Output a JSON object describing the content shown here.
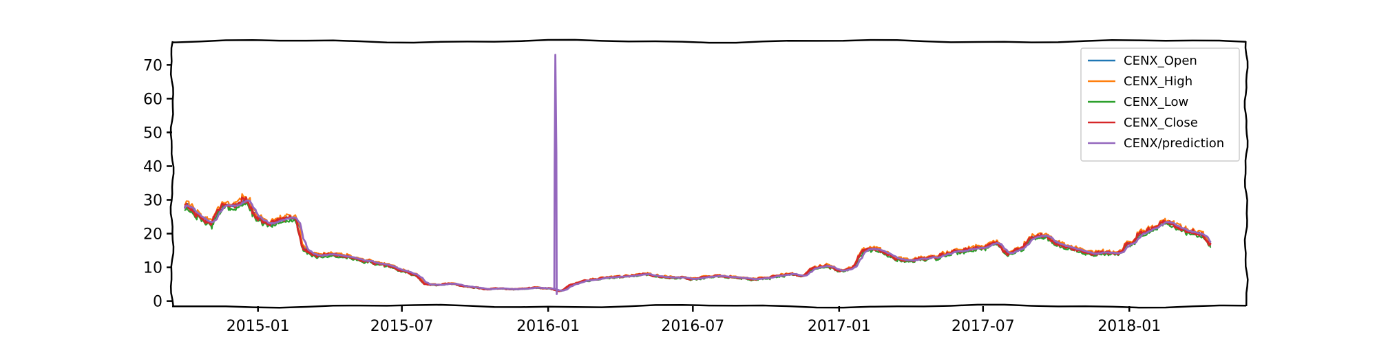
{
  "chart_data": {
    "type": "line",
    "title": "",
    "xlabel": "",
    "ylabel": "",
    "xlim": [
      "2014-09-15",
      "2018-05-28"
    ],
    "ylim": [
      -1.5,
      77
    ],
    "y_ticks": [
      0,
      10,
      20,
      30,
      40,
      50,
      60,
      70
    ],
    "y_tick_labels": [
      "0",
      "10",
      "20",
      "30",
      "40",
      "50",
      "60",
      "70"
    ],
    "x_ticks": [
      "2015-01-01",
      "2015-07-01",
      "2016-01-01",
      "2016-07-01",
      "2017-01-01",
      "2017-07-01",
      "2018-01-01"
    ],
    "x_tick_labels": [
      "2015-01",
      "2015-07",
      "2016-01",
      "2016-07",
      "2017-01",
      "2017-07",
      "2018-01"
    ],
    "grid": false,
    "legend_position": "top-right",
    "style": "xkcd",
    "colors": {
      "CENX_Open": "#1f77b4",
      "CENX_High": "#ff7f0e",
      "CENX_Low": "#2ca02c",
      "CENX_Close": "#d62728",
      "CENX/prediction": "#9467bd"
    },
    "series": [
      {
        "name": "CENX_Open"
      },
      {
        "name": "CENX_High"
      },
      {
        "name": "CENX_Low"
      },
      {
        "name": "CENX_Close"
      },
      {
        "name": "CENX/prediction"
      }
    ],
    "close_anchors": {
      "x": [
        "2014-10-01",
        "2014-10-20",
        "2014-11-01",
        "2014-11-15",
        "2014-12-01",
        "2014-12-15",
        "2015-01-01",
        "2015-01-15",
        "2015-02-01",
        "2015-02-15",
        "2015-03-01",
        "2015-03-15",
        "2015-04-01",
        "2015-04-15",
        "2015-05-01",
        "2015-05-15",
        "2015-06-01",
        "2015-06-15",
        "2015-07-01",
        "2015-07-15",
        "2015-08-01",
        "2015-08-15",
        "2015-09-01",
        "2015-09-15",
        "2015-10-01",
        "2015-10-15",
        "2015-11-01",
        "2015-11-15",
        "2015-12-01",
        "2015-12-15",
        "2016-01-01",
        "2016-01-15",
        "2016-02-01",
        "2016-02-15",
        "2016-03-01",
        "2016-03-15",
        "2016-04-01",
        "2016-04-15",
        "2016-05-01",
        "2016-05-15",
        "2016-06-01",
        "2016-06-15",
        "2016-07-01",
        "2016-07-15",
        "2016-08-01",
        "2016-08-15",
        "2016-09-01",
        "2016-09-15",
        "2016-10-01",
        "2016-10-15",
        "2016-11-01",
        "2016-11-15",
        "2016-12-01",
        "2016-12-15",
        "2017-01-01",
        "2017-01-15",
        "2017-02-01",
        "2017-02-15",
        "2017-03-01",
        "2017-03-15",
        "2017-04-01",
        "2017-04-15",
        "2017-05-01",
        "2017-05-15",
        "2017-06-01",
        "2017-06-15",
        "2017-07-01",
        "2017-07-15",
        "2017-08-01",
        "2017-08-15",
        "2017-09-01",
        "2017-09-15",
        "2017-10-01",
        "2017-10-15",
        "2017-11-01",
        "2017-11-15",
        "2017-12-01",
        "2017-12-15",
        "2018-01-01",
        "2018-01-15",
        "2018-02-01",
        "2018-02-15",
        "2018-03-01",
        "2018-03-15",
        "2018-04-01",
        "2018-04-15"
      ],
      "y": [
        28.5,
        25,
        23,
        28,
        28.5,
        30,
        24.5,
        23,
        24,
        25,
        15,
        13.5,
        14,
        13.5,
        12.8,
        12,
        11,
        10.5,
        9,
        8,
        5,
        4.8,
        5.2,
        4.5,
        4,
        3.5,
        3.8,
        3.5,
        3.7,
        4,
        3.8,
        3,
        5,
        6,
        6.5,
        7,
        7.2,
        7.5,
        8,
        7.5,
        7,
        7,
        6.5,
        7,
        7.5,
        7.2,
        6.8,
        6.5,
        6.8,
        7.5,
        8,
        7.5,
        10,
        10.5,
        9,
        9.5,
        15,
        15.5,
        14,
        12.5,
        12,
        12.5,
        13,
        14,
        15,
        15.5,
        16,
        17.5,
        14,
        15.5,
        19,
        19.5,
        17,
        16,
        15,
        14,
        14.5,
        14,
        17,
        20,
        22,
        24,
        22,
        21,
        20,
        16.5
      ]
    },
    "prediction_spike": {
      "x": "2016-01-10",
      "y": 73
    }
  }
}
